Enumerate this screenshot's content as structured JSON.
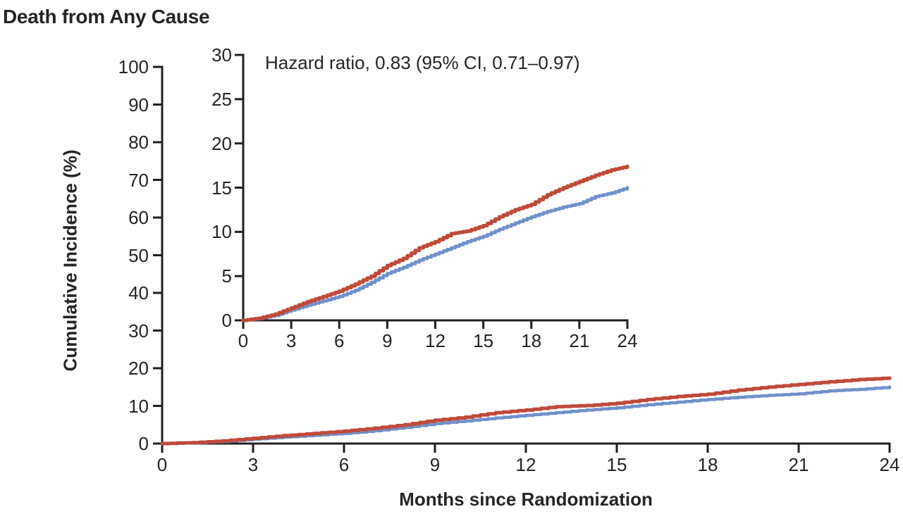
{
  "title": "Death from Any Cause",
  "colors": {
    "axis": "#231f20",
    "text": "#272425",
    "red_curve": "#c04a3b",
    "blue_curve": "#7191c9"
  },
  "chart_data": [
    {
      "id": "main",
      "type": "line",
      "step": true,
      "title": "Death from Any Cause",
      "xlabel": "Months since Randomization",
      "ylabel": "Cumulative Incidence (%)",
      "xlim": [
        0,
        24
      ],
      "ylim": [
        0,
        100
      ],
      "xticks": [
        0,
        3,
        6,
        9,
        12,
        15,
        18,
        21,
        24
      ],
      "yticks": [
        0,
        10,
        20,
        30,
        40,
        50,
        60,
        70,
        80,
        90,
        100
      ],
      "grid": false,
      "legend": "none",
      "series": [
        {
          "name": "red-curve",
          "color": "#c04a3b",
          "x": [
            0,
            1,
            2,
            3,
            4,
            5,
            6,
            7,
            8,
            9,
            10,
            11,
            12,
            13,
            14,
            15,
            16,
            17,
            18,
            19,
            20,
            21,
            22,
            23,
            24
          ],
          "y": [
            0,
            0.25,
            0.7,
            1.4,
            2.1,
            2.7,
            3.3,
            4.1,
            5.0,
            6.2,
            7.0,
            8.2,
            8.9,
            9.8,
            10.1,
            10.7,
            11.7,
            12.5,
            13.1,
            14.2,
            15.0,
            15.7,
            16.4,
            17.0,
            17.4
          ]
        },
        {
          "name": "blue-curve",
          "color": "#7191c9",
          "x": [
            0,
            1,
            2,
            3,
            4,
            5,
            6,
            7,
            8,
            9,
            10,
            11,
            12,
            13,
            14,
            15,
            16,
            17,
            18,
            19,
            20,
            21,
            22,
            23,
            24
          ],
          "y": [
            0,
            0.2,
            0.55,
            1.15,
            1.7,
            2.2,
            2.7,
            3.4,
            4.3,
            5.3,
            6.0,
            6.8,
            7.5,
            8.2,
            8.9,
            9.5,
            10.3,
            11.0,
            11.7,
            12.3,
            12.8,
            13.2,
            14.0,
            14.4,
            15.0
          ]
        }
      ]
    },
    {
      "id": "inset",
      "type": "line",
      "step": true,
      "annotation": "Hazard ratio, 0.83 (95% CI, 0.71–0.97)",
      "xlim": [
        0,
        24
      ],
      "ylim": [
        0,
        30
      ],
      "xticks": [
        0,
        3,
        6,
        9,
        12,
        15,
        18,
        21,
        24
      ],
      "yticks": [
        0,
        5,
        10,
        15,
        20,
        25,
        30
      ],
      "grid": false,
      "legend": "none",
      "series": [
        {
          "name": "red-curve",
          "color": "#c04a3b",
          "x": [
            0,
            1,
            2,
            3,
            4,
            5,
            6,
            7,
            8,
            9,
            10,
            11,
            12,
            13,
            14,
            15,
            16,
            17,
            18,
            19,
            20,
            21,
            22,
            23,
            24
          ],
          "y": [
            0,
            0.25,
            0.7,
            1.4,
            2.1,
            2.7,
            3.3,
            4.1,
            5.0,
            6.2,
            7.0,
            8.2,
            8.9,
            9.8,
            10.1,
            10.7,
            11.7,
            12.5,
            13.1,
            14.2,
            15.0,
            15.7,
            16.4,
            17.0,
            17.4
          ]
        },
        {
          "name": "blue-curve",
          "color": "#7191c9",
          "x": [
            0,
            1,
            2,
            3,
            4,
            5,
            6,
            7,
            8,
            9,
            10,
            11,
            12,
            13,
            14,
            15,
            16,
            17,
            18,
            19,
            20,
            21,
            22,
            23,
            24
          ],
          "y": [
            0,
            0.2,
            0.55,
            1.15,
            1.7,
            2.2,
            2.7,
            3.4,
            4.3,
            5.3,
            6.0,
            6.8,
            7.5,
            8.2,
            8.9,
            9.5,
            10.3,
            11.0,
            11.7,
            12.3,
            12.8,
            13.2,
            14.0,
            14.4,
            15.0
          ]
        }
      ]
    }
  ]
}
